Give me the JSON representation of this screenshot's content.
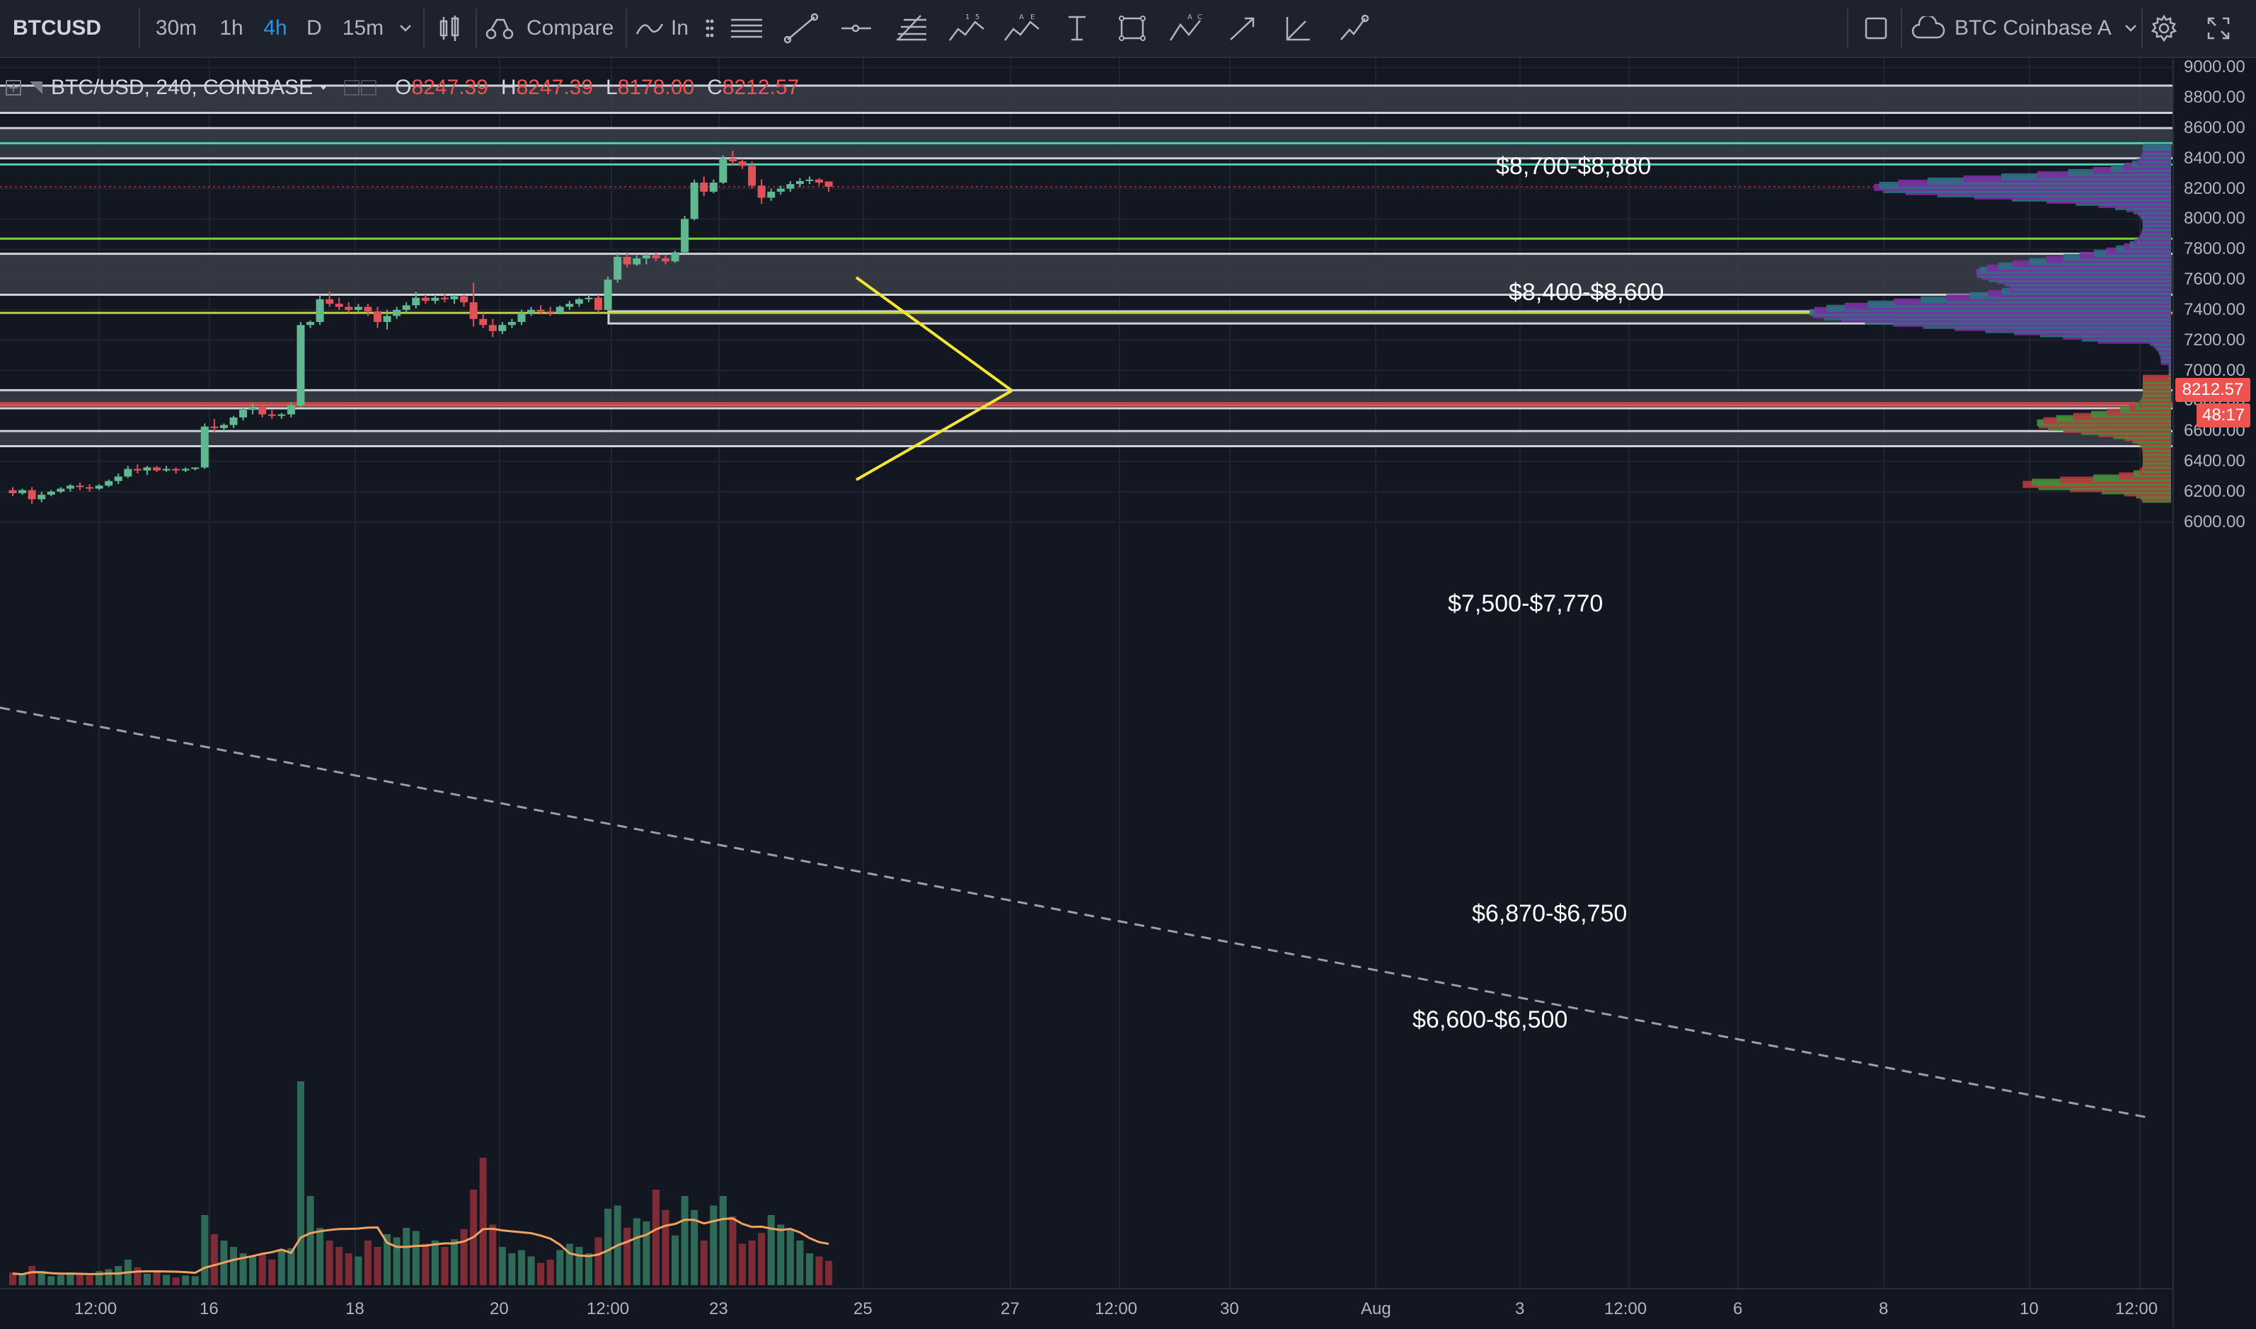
{
  "toolbar": {
    "symbol": "BTCUSD",
    "intervals": [
      "30m",
      "1h",
      "4h",
      "D",
      "15m"
    ],
    "active_interval": "4h",
    "compare_label": "Compare",
    "indicators_label": "In",
    "right_label": "BTC Coinbase A",
    "icons": [
      "candles-icon",
      "compare-icon",
      "indicators-icon",
      "settings-icon",
      "fullscreen-icon",
      "cloud-icon",
      "checkbox-icon"
    ]
  },
  "drawing_tools": [
    "drag-handle-icon",
    "horizontal-lines-icon",
    "trendline-icon",
    "horizontal-ray-icon",
    "fib-icon",
    "wave-15-icon",
    "wave-ae-icon",
    "text-icon",
    "rectangle-icon",
    "abc-pattern-icon",
    "arrow-icon",
    "angle-icon",
    "measure-icon"
  ],
  "legend": {
    "title": "BTC/USD, 240, COINBASE",
    "ohlc": [
      {
        "k": "O",
        "v": "8247.39"
      },
      {
        "k": "H",
        "v": "8247.39"
      },
      {
        "k": "L",
        "v": "8178.00"
      },
      {
        "k": "C",
        "v": "8212.57"
      }
    ]
  },
  "price_axis": {
    "labels": [
      "9000.00",
      "8800.00",
      "8600.00",
      "8400.00",
      "8200.00",
      "8000.00",
      "7800.00",
      "7600.00",
      "7400.00",
      "7200.00",
      "7000.00",
      "6800.00",
      "6600.00",
      "6400.00",
      "6200.00",
      "6000.00"
    ],
    "current_price": "8212.57",
    "countdown": "48:17"
  },
  "time_axis": {
    "labels": [
      "12:00",
      "16",
      "18",
      "20",
      "12:00",
      "23",
      "25",
      "27",
      "12:00",
      "30",
      "Aug",
      "3",
      "12:00",
      "6",
      "8",
      "10",
      "12:00"
    ]
  },
  "zones": {
    "z1": {
      "label": "$8,700-$8,880",
      "low": 8700,
      "high": 8880
    },
    "z2": {
      "label": "$8,400-$8,600",
      "low": 8400,
      "high": 8600
    },
    "z3": {
      "label": "$7,500-$7,770",
      "low": 7500,
      "high": 7770
    },
    "z4": {
      "label": "$6,870-$6,750",
      "low": 6750,
      "high": 6870
    },
    "z5": {
      "label": "$6,600-$6,500",
      "low": 6500,
      "high": 6600
    }
  },
  "colors": {
    "up": "#5fb88f",
    "down": "#e0525a",
    "zone_fill": "#3a3d46",
    "zone_line": "#cfd2d8",
    "triangle": "#f5e533",
    "ma": "#f0a35e",
    "green_line": "#7cd23b",
    "teal_line": "#4fd1b0",
    "red_line": "#ef5350"
  },
  "chart_data": {
    "type": "candlestick",
    "ylim": [
      5950,
      9050
    ],
    "candles": [
      [
        6210,
        6230,
        6170,
        6190
      ],
      [
        6190,
        6220,
        6180,
        6210
      ],
      [
        6210,
        6230,
        6120,
        6150
      ],
      [
        6150,
        6200,
        6130,
        6180
      ],
      [
        6180,
        6210,
        6170,
        6200
      ],
      [
        6200,
        6230,
        6190,
        6220
      ],
      [
        6220,
        6250,
        6200,
        6240
      ],
      [
        6240,
        6260,
        6210,
        6230
      ],
      [
        6230,
        6250,
        6200,
        6220
      ],
      [
        6220,
        6250,
        6210,
        6240
      ],
      [
        6240,
        6280,
        6230,
        6270
      ],
      [
        6270,
        6320,
        6250,
        6300
      ],
      [
        6300,
        6370,
        6290,
        6350
      ],
      [
        6350,
        6380,
        6320,
        6340
      ],
      [
        6340,
        6370,
        6310,
        6360
      ],
      [
        6360,
        6370,
        6330,
        6340
      ],
      [
        6340,
        6370,
        6330,
        6350
      ],
      [
        6350,
        6360,
        6320,
        6340
      ],
      [
        6340,
        6360,
        6330,
        6350
      ],
      [
        6350,
        6360,
        6340,
        6360
      ],
      [
        6360,
        6650,
        6350,
        6630
      ],
      [
        6630,
        6680,
        6590,
        6620
      ],
      [
        6620,
        6650,
        6600,
        6640
      ],
      [
        6640,
        6700,
        6620,
        6690
      ],
      [
        6690,
        6760,
        6670,
        6740
      ],
      [
        6740,
        6780,
        6710,
        6760
      ],
      [
        6760,
        6780,
        6690,
        6710
      ],
      [
        6710,
        6740,
        6680,
        6700
      ],
      [
        6700,
        6720,
        6680,
        6710
      ],
      [
        6710,
        6790,
        6690,
        6770
      ],
      [
        6770,
        7320,
        6750,
        7300
      ],
      [
        7300,
        7330,
        7280,
        7320
      ],
      [
        7320,
        7500,
        7300,
        7470
      ],
      [
        7470,
        7520,
        7420,
        7440
      ],
      [
        7440,
        7480,
        7400,
        7420
      ],
      [
        7420,
        7450,
        7380,
        7400
      ],
      [
        7400,
        7440,
        7380,
        7420
      ],
      [
        7420,
        7440,
        7360,
        7390
      ],
      [
        7390,
        7420,
        7280,
        7320
      ],
      [
        7320,
        7400,
        7270,
        7360
      ],
      [
        7360,
        7420,
        7340,
        7400
      ],
      [
        7400,
        7450,
        7380,
        7430
      ],
      [
        7430,
        7520,
        7410,
        7480
      ],
      [
        7480,
        7500,
        7440,
        7460
      ],
      [
        7460,
        7500,
        7440,
        7480
      ],
      [
        7480,
        7510,
        7450,
        7470
      ],
      [
        7470,
        7500,
        7440,
        7490
      ],
      [
        7490,
        7500,
        7420,
        7450
      ],
      [
        7450,
        7580,
        7290,
        7340
      ],
      [
        7340,
        7380,
        7280,
        7300
      ],
      [
        7300,
        7340,
        7220,
        7260
      ],
      [
        7260,
        7320,
        7240,
        7300
      ],
      [
        7300,
        7340,
        7280,
        7320
      ],
      [
        7320,
        7400,
        7300,
        7380
      ],
      [
        7380,
        7420,
        7360,
        7400
      ],
      [
        7400,
        7430,
        7370,
        7390
      ],
      [
        7390,
        7420,
        7360,
        7380
      ],
      [
        7380,
        7430,
        7370,
        7420
      ],
      [
        7420,
        7460,
        7400,
        7440
      ],
      [
        7440,
        7480,
        7420,
        7470
      ],
      [
        7470,
        7500,
        7450,
        7480
      ],
      [
        7480,
        7500,
        7380,
        7400
      ],
      [
        7400,
        7620,
        7390,
        7600
      ],
      [
        7600,
        7780,
        7580,
        7750
      ],
      [
        7750,
        7780,
        7680,
        7700
      ],
      [
        7700,
        7760,
        7690,
        7740
      ],
      [
        7740,
        7780,
        7700,
        7760
      ],
      [
        7760,
        7780,
        7720,
        7740
      ],
      [
        7740,
        7760,
        7700,
        7720
      ],
      [
        7720,
        7790,
        7710,
        7780
      ],
      [
        7780,
        8020,
        7770,
        8000
      ],
      [
        8000,
        8260,
        7990,
        8240
      ],
      [
        8240,
        8280,
        8150,
        8180
      ],
      [
        8180,
        8260,
        8170,
        8240
      ],
      [
        8240,
        8420,
        8230,
        8400
      ],
      [
        8400,
        8450,
        8350,
        8380
      ],
      [
        8380,
        8400,
        8330,
        8350
      ],
      [
        8350,
        8380,
        8200,
        8220
      ],
      [
        8220,
        8260,
        8100,
        8140
      ],
      [
        8140,
        8200,
        8120,
        8180
      ],
      [
        8180,
        8220,
        8160,
        8200
      ],
      [
        8200,
        8250,
        8180,
        8230
      ],
      [
        8230,
        8270,
        8210,
        8250
      ],
      [
        8250,
        8280,
        8230,
        8260
      ],
      [
        8260,
        8270,
        8220,
        8240
      ],
      [
        8247.39,
        8247.39,
        8178,
        8212.57
      ]
    ],
    "volumes": [
      20,
      18,
      30,
      22,
      14,
      16,
      20,
      18,
      15,
      22,
      25,
      30,
      40,
      28,
      18,
      20,
      16,
      12,
      15,
      14,
      110,
      80,
      70,
      60,
      50,
      45,
      48,
      40,
      55,
      58,
      320,
      140,
      90,
      70,
      60,
      50,
      45,
      70,
      60,
      80,
      75,
      90,
      85,
      65,
      70,
      60,
      72,
      88,
      150,
      200,
      95,
      60,
      50,
      55,
      45,
      35,
      40,
      55,
      65,
      60,
      50,
      75,
      120,
      125,
      90,
      105,
      100,
      150,
      118,
      78,
      140,
      118,
      70,
      125,
      140,
      108,
      65,
      70,
      82,
      110,
      95,
      88,
      70,
      50,
      45,
      38
    ]
  }
}
